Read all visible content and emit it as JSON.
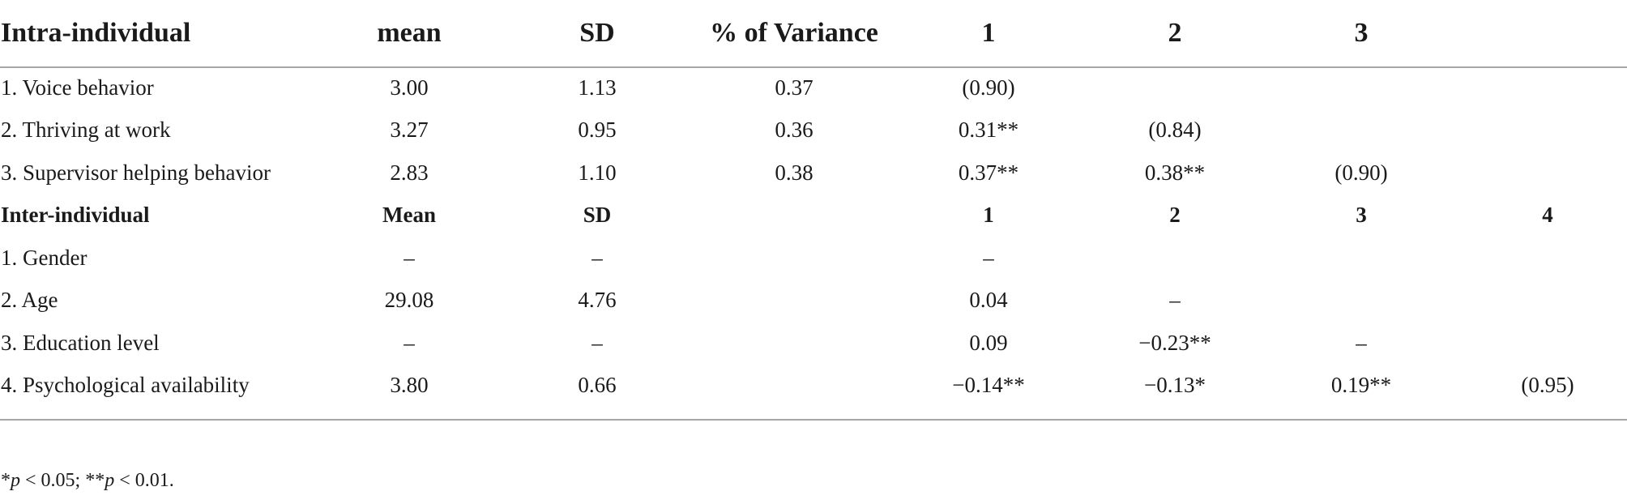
{
  "table": {
    "header": [
      "Intra-individual",
      "mean",
      "SD",
      "% of Variance",
      "1",
      "2",
      "3",
      ""
    ],
    "rows": [
      {
        "cells": [
          "1. Voice behavior",
          "3.00",
          "1.13",
          "0.37",
          "(0.90)",
          "",
          "",
          ""
        ],
        "bold": false
      },
      {
        "cells": [
          "2. Thriving at work",
          "3.27",
          "0.95",
          "0.36",
          "0.31**",
          "(0.84)",
          "",
          ""
        ],
        "bold": false
      },
      {
        "cells": [
          "3. Supervisor helping behavior",
          "2.83",
          "1.10",
          "0.38",
          "0.37**",
          "0.38**",
          "(0.90)",
          ""
        ],
        "bold": false
      },
      {
        "cells": [
          "Inter-individual",
          "Mean",
          "SD",
          "",
          "1",
          "2",
          "3",
          "4"
        ],
        "bold": true
      },
      {
        "cells": [
          "1. Gender",
          "–",
          "–",
          "",
          "–",
          "",
          "",
          ""
        ],
        "bold": false
      },
      {
        "cells": [
          "2. Age",
          "29.08",
          "4.76",
          "",
          "0.04",
          "–",
          "",
          ""
        ],
        "bold": false
      },
      {
        "cells": [
          "3. Education level",
          "–",
          "–",
          "",
          "0.09",
          "−0.23**",
          "–",
          ""
        ],
        "bold": false
      },
      {
        "cells": [
          "4. Psychological availability",
          "3.80",
          "0.66",
          "",
          "−0.14**",
          "−0.13*",
          "0.19**",
          "(0.95)"
        ],
        "bold": false
      }
    ]
  },
  "note": {
    "star1": "*",
    "p1": "p",
    "text1": " < 0.05; ",
    "star2": "**",
    "p2": "p",
    "text2": " < 0.01."
  }
}
